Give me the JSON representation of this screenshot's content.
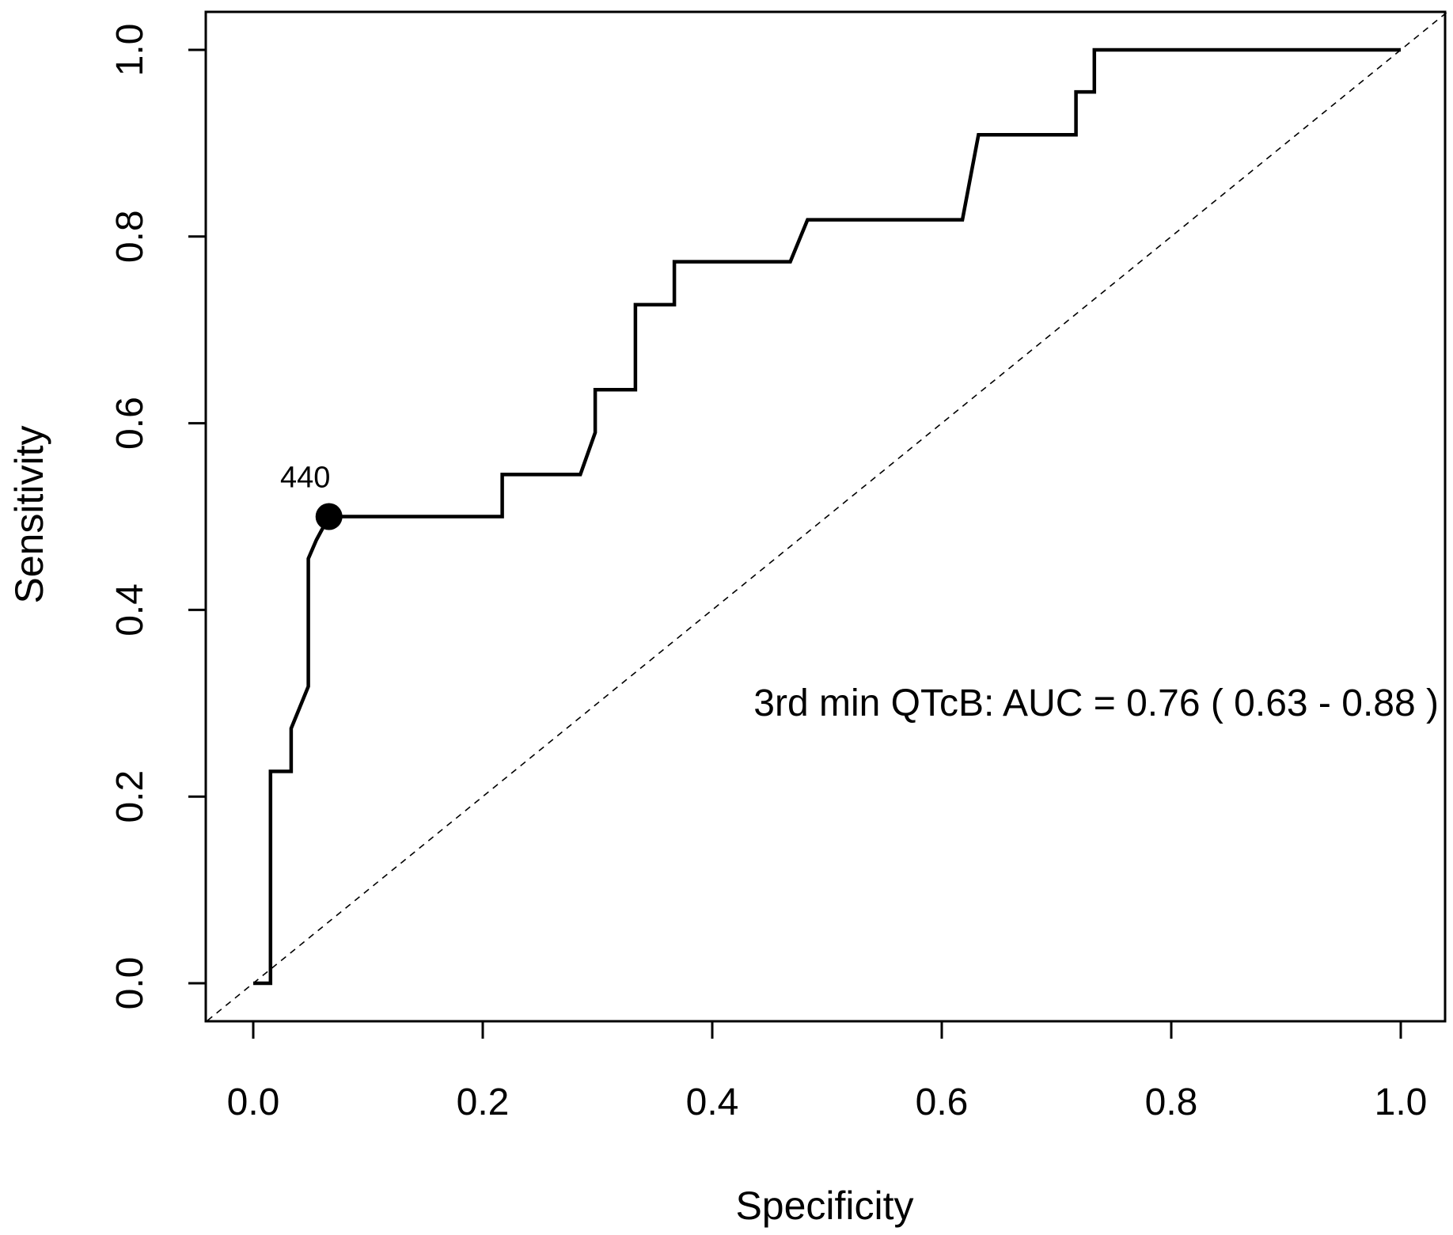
{
  "chart_data": {
    "type": "line",
    "title": "",
    "xlabel": "Specificity",
    "ylabel": "Sensitivity",
    "xlim": [
      0.0,
      1.0
    ],
    "ylim": [
      0.0,
      1.0
    ],
    "x_ticks": [
      "0.0",
      "0.2",
      "0.4",
      "0.6",
      "0.8",
      "1.0"
    ],
    "y_ticks": [
      "0.0",
      "0.2",
      "0.4",
      "0.6",
      "0.8",
      "1.0"
    ],
    "grid": false,
    "series": [
      {
        "name": "3rd min QTcB ROC curve",
        "style": "solid",
        "x": [
          0.0,
          0.015,
          0.015,
          0.033,
          0.033,
          0.048,
          0.048,
          0.055,
          0.066,
          0.217,
          0.217,
          0.285,
          0.298,
          0.298,
          0.333,
          0.333,
          0.367,
          0.367,
          0.468,
          0.483,
          0.618,
          0.632,
          0.717,
          0.717,
          0.733,
          0.733,
          1.0
        ],
        "y": [
          0.0,
          0.0,
          0.227,
          0.227,
          0.273,
          0.318,
          0.455,
          0.475,
          0.5,
          0.5,
          0.545,
          0.545,
          0.59,
          0.636,
          0.636,
          0.727,
          0.727,
          0.773,
          0.773,
          0.818,
          0.818,
          0.909,
          0.909,
          0.955,
          0.955,
          1.0,
          1.0
        ]
      },
      {
        "name": "reference diagonal",
        "style": "dashed",
        "x": [
          -0.04,
          1.04
        ],
        "y": [
          -0.04,
          1.04
        ]
      }
    ],
    "highlight_point": {
      "x": 0.066,
      "y": 0.5,
      "label": "440"
    },
    "annotations": [
      {
        "text": "3rd min QTcB: AUC = 0.76 ( 0.63 - 0.88 )"
      }
    ],
    "colors": {
      "line": "#000000",
      "background": "#ffffff"
    }
  }
}
